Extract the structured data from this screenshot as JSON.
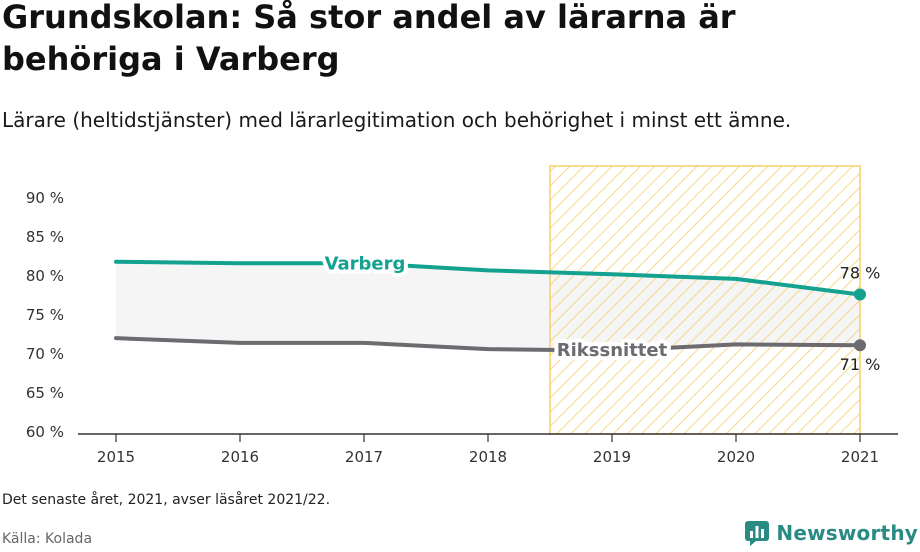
{
  "title": "Grundskolan: Så stor andel av lärarna är behöriga i Varberg",
  "subtitle": "Lärare (heltidstjänster) med lärarlegitimation och behörighet i minst ett ämne.",
  "note": "Det senaste året, 2021, avser läsåret 2021/22.",
  "source": "Källa: Kolada",
  "brand": "Newsworthy",
  "colors": {
    "varberg": "#13a190",
    "riks": "#6b6b70",
    "highlight": "#f5cf6a",
    "band": "#f4f4f4"
  },
  "chart_data": {
    "type": "line",
    "x": [
      "2015",
      "2016",
      "2017",
      "2018",
      "2019",
      "2020",
      "2021"
    ],
    "ylim": [
      60,
      90
    ],
    "yticks": [
      60,
      65,
      70,
      75,
      80,
      85,
      90
    ],
    "ytick_labels": [
      "60 %",
      "65 %",
      "70 %",
      "75 %",
      "80 %",
      "85 %",
      "90 %"
    ],
    "highlight_range": [
      "2018.5",
      "2021"
    ],
    "series": [
      {
        "name": "Varberg",
        "values": [
          81.7,
          81.5,
          81.5,
          80.6,
          80.1,
          79.5,
          77.5
        ],
        "end_label": "78 %"
      },
      {
        "name": "Rikssnittet",
        "values": [
          71.9,
          71.3,
          71.3,
          70.5,
          70.3,
          71.1,
          71.0
        ],
        "end_label": "71 %"
      }
    ]
  }
}
